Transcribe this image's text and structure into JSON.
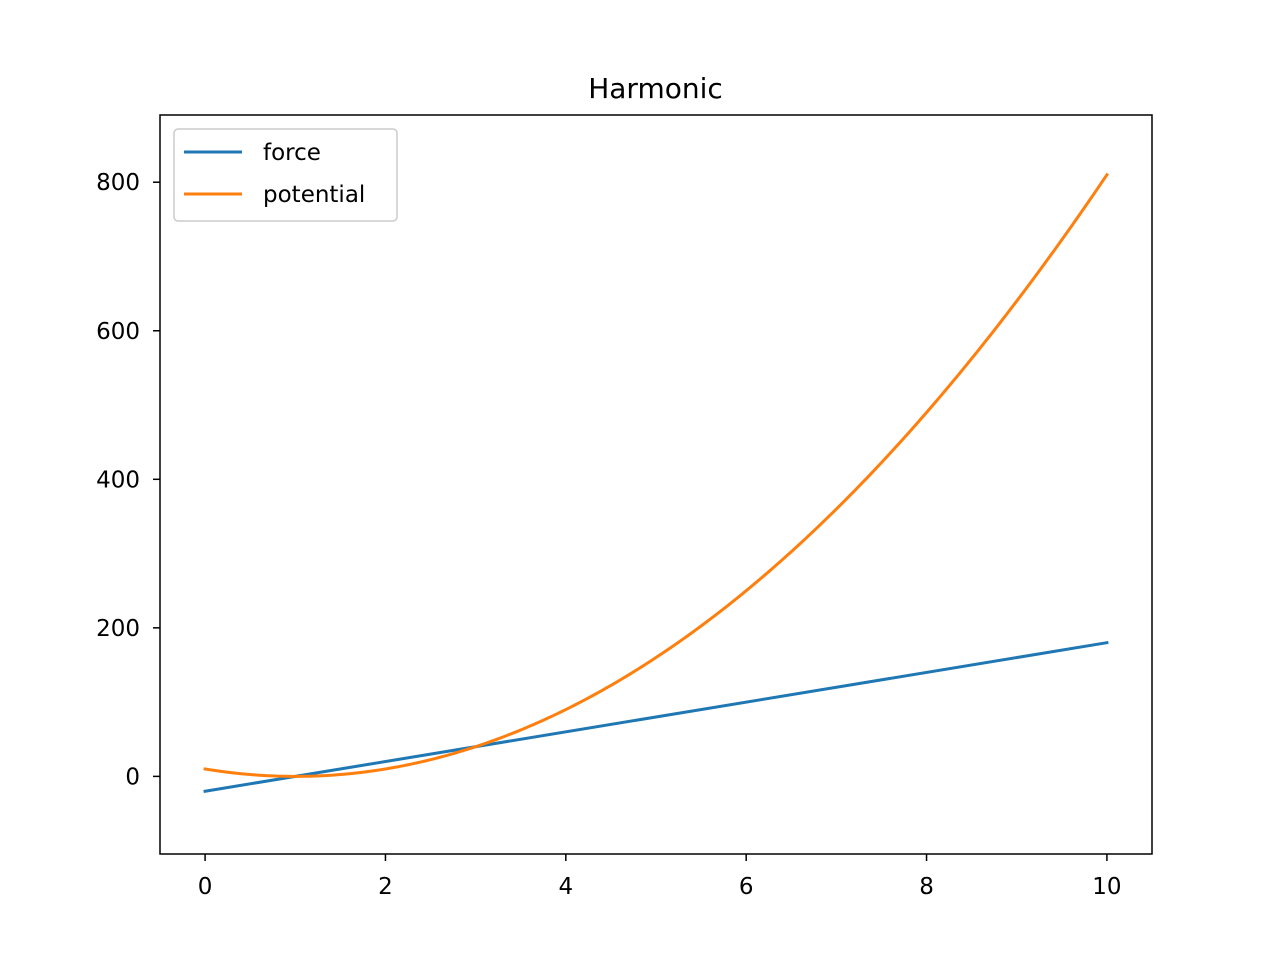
{
  "chart_data": {
    "type": "line",
    "title": "Harmonic",
    "xlabel": "",
    "ylabel": "",
    "xlim": [
      -0.5,
      10.5
    ],
    "ylim": [
      -104.5,
      890.5
    ],
    "xticks": [
      0,
      2,
      4,
      6,
      8,
      10
    ],
    "yticks": [
      0,
      200,
      400,
      600,
      800
    ],
    "grid": false,
    "legend_position": "upper-left",
    "series": [
      {
        "name": "force",
        "color": "#1f77b4",
        "x": [
          0,
          10
        ],
        "y": [
          -20,
          180
        ]
      },
      {
        "name": "potential",
        "color": "#ff7f0e",
        "x": [
          0,
          0.5,
          1,
          1.5,
          2,
          2.5,
          3,
          3.5,
          4,
          4.5,
          5,
          5.5,
          6,
          6.5,
          7,
          7.5,
          8,
          8.5,
          9,
          9.5,
          10
        ],
        "y": [
          10,
          2.5,
          0,
          2.5,
          10,
          22.5,
          40,
          62.5,
          90,
          122.5,
          160,
          202.5,
          250,
          302.5,
          360,
          422.5,
          490,
          562.5,
          640,
          722.5,
          810
        ]
      }
    ]
  }
}
